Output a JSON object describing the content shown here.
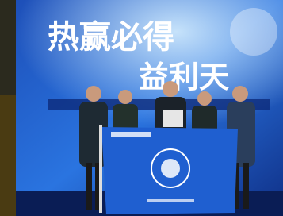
{
  "headline": {
    "line1": "热赢必得",
    "line2": "益利天"
  }
}
